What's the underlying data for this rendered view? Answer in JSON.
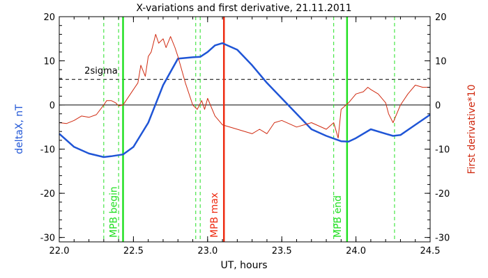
{
  "chart_data": {
    "type": "line",
    "title": "X-variations and first derivative, 21.11.2011",
    "xlabel": "UT, hours",
    "ylabel_left": "deltaX, nT",
    "ylabel_right": "First derivative*10",
    "xlim": [
      22.0,
      24.5
    ],
    "ylim": [
      -31,
      20
    ],
    "xticks": [
      "22.0",
      "22.5",
      "23.0",
      "23.5",
      "24.0",
      "24.5"
    ],
    "yticks": [
      "20",
      "10",
      "0",
      "-10",
      "-20",
      "-30"
    ],
    "colors": {
      "deltaX": "#1f55d6",
      "derivative": "#d02a10",
      "mpb_edge": "#22e022",
      "mpb_max": "#ee2a10",
      "guide": "#000000"
    },
    "threshold_label": "2sigma",
    "threshold_value": 5.8,
    "series": [
      {
        "name": "deltaX, nT",
        "x": [
          22.0,
          22.1,
          22.2,
          22.3,
          22.35,
          22.43,
          22.5,
          22.6,
          22.7,
          22.8,
          22.9,
          22.95,
          23.0,
          23.05,
          23.1,
          23.2,
          23.3,
          23.4,
          23.5,
          23.6,
          23.7,
          23.8,
          23.9,
          23.95,
          24.0,
          24.1,
          24.2,
          24.25,
          24.3,
          24.4,
          24.5
        ],
        "values": [
          -6.5,
          -9.5,
          -11,
          -11.8,
          -11.6,
          -11.2,
          -9.5,
          -4,
          4.5,
          10.5,
          10.8,
          10.9,
          12,
          13.5,
          14,
          12.5,
          9,
          5,
          1.5,
          -2,
          -5.5,
          -7,
          -8.2,
          -8.3,
          -7.5,
          -5.5,
          -6.5,
          -7,
          -6.8,
          -4.5,
          -2.2
        ]
      },
      {
        "name": "First derivative*10",
        "x": [
          22.0,
          22.05,
          22.1,
          22.15,
          22.2,
          22.25,
          22.3,
          22.32,
          22.35,
          22.38,
          22.4,
          22.43,
          22.45,
          22.5,
          22.53,
          22.55,
          22.58,
          22.6,
          22.62,
          22.65,
          22.67,
          22.7,
          22.72,
          22.75,
          22.78,
          22.8,
          22.85,
          22.9,
          22.93,
          22.96,
          22.98,
          23.0,
          23.05,
          23.1,
          23.2,
          23.3,
          23.35,
          23.4,
          23.45,
          23.5,
          23.6,
          23.7,
          23.8,
          23.85,
          23.88,
          23.9,
          23.95,
          24.0,
          24.05,
          24.08,
          24.1,
          24.15,
          24.2,
          24.22,
          24.25,
          24.3,
          24.35,
          24.4,
          24.45,
          24.5
        ],
        "values": [
          -4,
          -4.2,
          -3.5,
          -2.5,
          -2.8,
          -2.2,
          0,
          1,
          1,
          0.5,
          -0.2,
          0,
          1,
          3.5,
          5,
          9,
          6.5,
          11,
          12,
          16,
          14,
          15,
          13,
          15.5,
          13,
          11,
          5,
          0,
          -1,
          1,
          -1,
          1.5,
          -2.5,
          -4.5,
          -5.5,
          -6.5,
          -5.5,
          -6.5,
          -4,
          -3.5,
          -5,
          -4,
          -5.5,
          -4,
          -7.5,
          -1,
          0.5,
          2.5,
          3,
          4,
          3.5,
          2.5,
          0.5,
          -2,
          -4,
          0,
          2.5,
          4.5,
          4,
          4
        ]
      }
    ],
    "vertical_lines": [
      {
        "x": 22.3,
        "style": "dashed",
        "color": "#22e022"
      },
      {
        "x": 22.4,
        "style": "dashed",
        "color": "#22e022"
      },
      {
        "x": 22.43,
        "style": "solid",
        "color": "#22e022",
        "label": "MPB begin"
      },
      {
        "x": 22.92,
        "style": "dashed",
        "color": "#22e022"
      },
      {
        "x": 22.95,
        "style": "dashed",
        "color": "#22e022"
      },
      {
        "x": 23.11,
        "style": "solid",
        "color": "#ee2a10",
        "label": "MPB max"
      },
      {
        "x": 23.85,
        "style": "dashed",
        "color": "#22e022"
      },
      {
        "x": 23.94,
        "style": "solid",
        "color": "#22e022",
        "label": "MPB end"
      },
      {
        "x": 24.26,
        "style": "dashed",
        "color": "#22e022"
      }
    ]
  }
}
